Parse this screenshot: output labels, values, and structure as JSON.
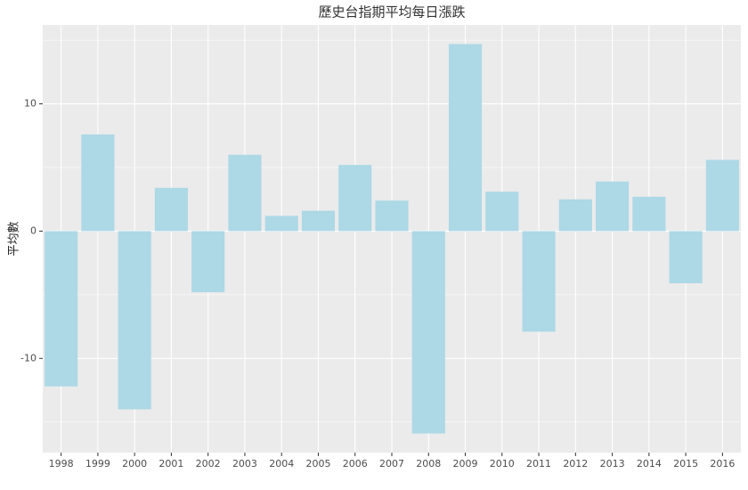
{
  "chart_data": {
    "type": "bar",
    "title": "歷史台指期平均每日漲跌",
    "y_label": "平均數",
    "categories": [
      "1998",
      "1999",
      "2000",
      "2001",
      "2002",
      "2003",
      "2004",
      "2005",
      "2006",
      "2007",
      "2008",
      "2009",
      "2010",
      "2011",
      "2012",
      "2013",
      "2014",
      "2015",
      "2016"
    ],
    "values": [
      -12.2,
      7.6,
      -14.0,
      3.4,
      -4.8,
      6.0,
      1.2,
      1.6,
      5.2,
      2.4,
      -15.9,
      14.7,
      3.1,
      -7.9,
      2.5,
      3.9,
      2.7,
      -4.1,
      5.6
    ],
    "color": "#add8e6",
    "ylim": [
      -17.4,
      16.2
    ],
    "yticks": [
      -10,
      0,
      10
    ],
    "grid": true
  }
}
